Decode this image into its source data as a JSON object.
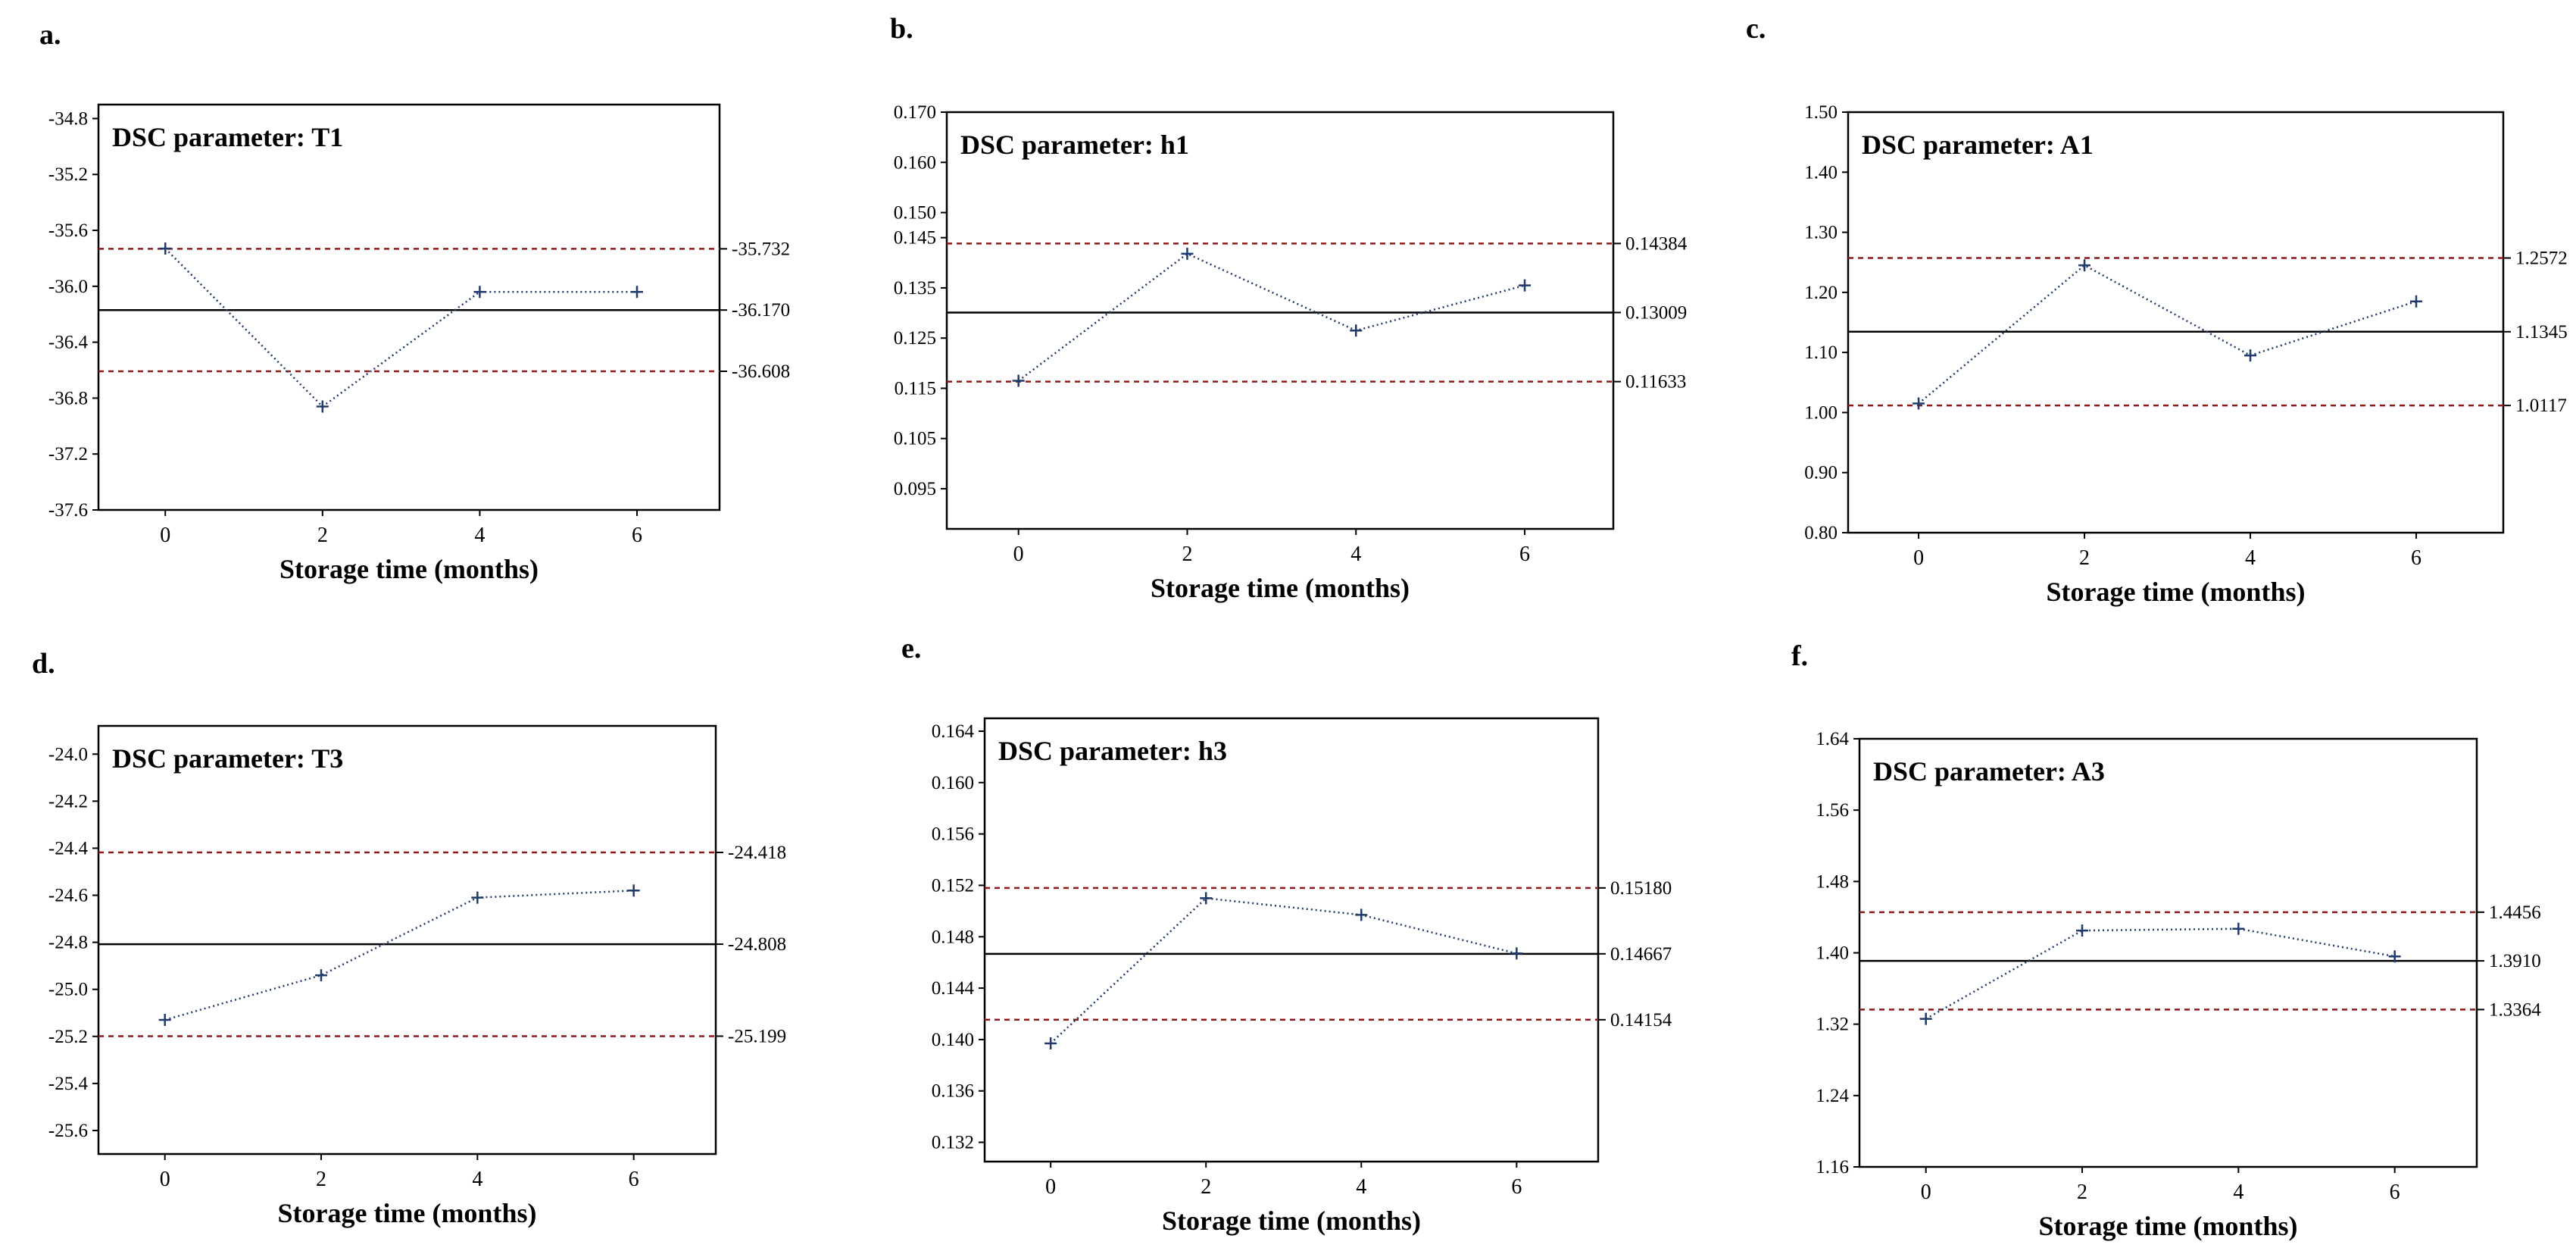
{
  "figure": {
    "x_axis_label": "Storage time (months)",
    "x_categories": [
      0,
      2,
      4,
      6
    ],
    "colors": {
      "center_line": "#000000",
      "limit_line": "#8b1a1a",
      "data_line": "#1f3a6b",
      "marker": "#1f3a6b",
      "frame": "#000000"
    }
  },
  "chart_data": [
    {
      "panel": "a.",
      "type": "line",
      "title": "DSC parameter: T1",
      "xlabel": "Storage time (months)",
      "x": [
        0,
        2,
        4,
        6
      ],
      "series": [
        {
          "values": [
            -35.73,
            -36.86,
            -36.04,
            -36.04
          ]
        }
      ],
      "yticks": [
        "-34.8",
        "-35.2",
        "-35.6",
        "-36.0",
        "-36.4",
        "-36.8",
        "-37.2",
        "-37.6"
      ],
      "ylim": [
        -37.6,
        -34.7
      ],
      "center_line": -36.17,
      "upper_limit": -35.732,
      "lower_limit": -36.608,
      "control_labels": [
        "-35.732",
        "-36.170",
        "-36.608"
      ]
    },
    {
      "panel": "b.",
      "type": "line",
      "title": "DSC parameter: h1",
      "xlabel": "Storage time (months)",
      "x": [
        0,
        2,
        4,
        6
      ],
      "series": [
        {
          "values": [
            0.1165,
            0.1418,
            0.1265,
            0.1355
          ]
        }
      ],
      "yticks": [
        "0.170",
        "0.160",
        "0.150",
        "0.145",
        "0.135",
        "0.125",
        "0.115",
        "0.105",
        "0.095"
      ],
      "ylim": [
        0.087,
        0.17
      ],
      "center_line": 0.13009,
      "upper_limit": 0.14384,
      "lower_limit": 0.11633,
      "control_labels": [
        "0.14384",
        "0.13009",
        "0.11633"
      ]
    },
    {
      "panel": "c.",
      "type": "line",
      "title": "DSC parameter: A1",
      "xlabel": "Storage time (months)",
      "x": [
        0,
        2,
        4,
        6
      ],
      "series": [
        {
          "values": [
            1.015,
            1.245,
            1.095,
            1.185
          ]
        }
      ],
      "yticks": [
        "1.50",
        "1.40",
        "1.30",
        "1.20",
        "1.10",
        "1.00",
        "0.90",
        "0.80"
      ],
      "ylim": [
        0.8,
        1.5
      ],
      "center_line": 1.1345,
      "upper_limit": 1.2572,
      "lower_limit": 1.0117,
      "control_labels": [
        "1.2572",
        "1.1345",
        "1.0117"
      ]
    },
    {
      "panel": "d.",
      "type": "line",
      "title": "DSC parameter: T3",
      "xlabel": "Storage time (months)",
      "x": [
        0,
        2,
        4,
        6
      ],
      "series": [
        {
          "values": [
            -25.13,
            -24.94,
            -24.61,
            -24.58
          ]
        }
      ],
      "yticks": [
        "-24.0",
        "-24.2",
        "-24.4",
        "-24.6",
        "-24.8",
        "-25.0",
        "-25.2",
        "-25.4",
        "-25.6"
      ],
      "ylim": [
        -25.7,
        -23.88
      ],
      "center_line": -24.808,
      "upper_limit": -24.418,
      "lower_limit": -25.199,
      "control_labels": [
        "-24.418",
        "-24.808",
        "-25.199"
      ]
    },
    {
      "panel": "e.",
      "type": "line",
      "title": "DSC parameter: h3",
      "xlabel": "Storage time (months)",
      "x": [
        0,
        2,
        4,
        6
      ],
      "series": [
        {
          "values": [
            0.1397,
            0.151,
            0.1497,
            0.1467
          ]
        }
      ],
      "yticks": [
        "0.164",
        "0.160",
        "0.156",
        "0.152",
        "0.148",
        "0.144",
        "0.140",
        "0.136",
        "0.132"
      ],
      "ylim": [
        0.1305,
        0.165
      ],
      "center_line": 0.14667,
      "upper_limit": 0.1518,
      "lower_limit": 0.14154,
      "control_labels": [
        "0.15180",
        "0.14667",
        "0.14154"
      ]
    },
    {
      "panel": "f.",
      "type": "line",
      "title": "DSC parameter: A3",
      "xlabel": "Storage time (months)",
      "x": [
        0,
        2,
        4,
        6
      ],
      "series": [
        {
          "values": [
            1.326,
            1.425,
            1.427,
            1.396
          ]
        }
      ],
      "yticks": [
        "1.64",
        "1.56",
        "1.48",
        "1.40",
        "1.32",
        "1.24",
        "1.16"
      ],
      "ylim": [
        1.16,
        1.64
      ],
      "center_line": 1.391,
      "upper_limit": 1.4456,
      "lower_limit": 1.3364,
      "control_labels": [
        "1.4456",
        "1.3910",
        "1.3364"
      ]
    }
  ]
}
